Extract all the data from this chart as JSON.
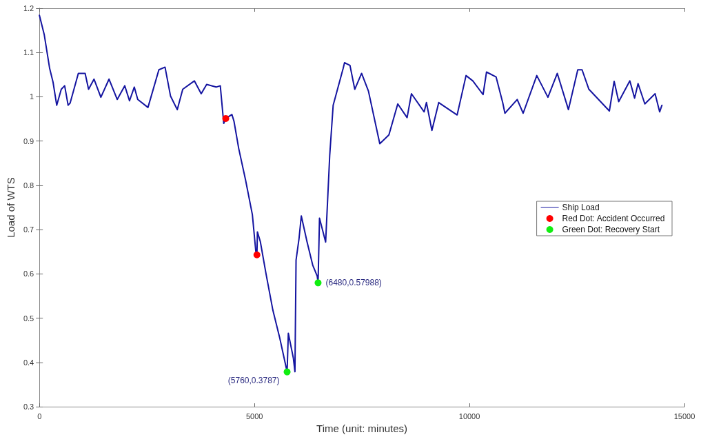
{
  "chart_data": {
    "type": "line",
    "xlabel": "Time (unit: minutes)",
    "ylabel": "Load of WTS",
    "xlim": [
      0,
      15000
    ],
    "xticks": [
      0,
      5000,
      10000,
      15000
    ],
    "ylim": [
      0.3,
      1.2
    ],
    "yticks": [
      0.3,
      0.4,
      0.5,
      0.6,
      0.7,
      0.8,
      0.9,
      1,
      1.1,
      1.2
    ],
    "grid": false,
    "legend": "right",
    "series": [
      {
        "name": "Ship Load",
        "marker": "none",
        "line_style": "solid",
        "color": "#1414a0",
        "x": [
          0,
          111,
          238,
          317,
          402,
          508,
          587,
          667,
          714,
          905,
          1063,
          1143,
          1270,
          1429,
          1619,
          1810,
          1984,
          2095,
          2206,
          2286,
          2524,
          2778,
          2921,
          3048,
          3206,
          3333,
          3603,
          3762,
          3889,
          4111,
          4206,
          4286,
          4333,
          4476,
          4524,
          4635,
          4794,
          4952,
          5032,
          5058,
          5069,
          5137,
          5270,
          5429,
          5587,
          5760,
          5788,
          5905,
          5942,
          5968,
          6037,
          6090,
          6222,
          6355,
          6460,
          6480,
          6513,
          6656,
          6751,
          6831,
          7063,
          7095,
          7222,
          7333,
          7492,
          7651,
          7915,
          8127,
          8333,
          8550,
          8651,
          8947,
          9000,
          9127,
          9286,
          9714,
          9921,
          10079,
          10317,
          10397,
          10619,
          10773,
          10825,
          11111,
          11249,
          11566,
          11825,
          12043,
          12302,
          12519,
          12619,
          12778,
          13254,
          13365,
          13471,
          13730,
          13841,
          13921,
          14079,
          14317,
          14423,
          14476
        ],
        "values": [
          1.184,
          1.141,
          1.064,
          1.033,
          0.981,
          1.017,
          1.025,
          0.981,
          0.986,
          1.053,
          1.053,
          1.017,
          1.04,
          0.999,
          1.04,
          0.994,
          1.025,
          0.991,
          1.022,
          0.994,
          0.976,
          1.061,
          1.067,
          1.002,
          0.971,
          1.017,
          1.036,
          1.007,
          1.028,
          1.022,
          1.025,
          0.94,
          0.951,
          0.96,
          0.945,
          0.883,
          0.812,
          0.734,
          0.651,
          0.643,
          0.695,
          0.673,
          0.6,
          0.518,
          0.456,
          0.3787,
          0.466,
          0.41,
          0.379,
          0.631,
          0.68,
          0.731,
          0.673,
          0.62,
          0.595,
          0.57988,
          0.726,
          0.672,
          0.868,
          0.981,
          1.064,
          1.077,
          1.071,
          1.017,
          1.053,
          1.013,
          0.894,
          0.914,
          0.984,
          0.953,
          1.007,
          0.966,
          0.987,
          0.924,
          0.987,
          0.959,
          1.048,
          1.036,
          1.005,
          1.056,
          1.045,
          0.987,
          0.963,
          0.994,
          0.963,
          1.048,
          0.999,
          1.053,
          0.971,
          1.061,
          1.061,
          1.017,
          0.968,
          1.035,
          0.989,
          1.036,
          0.997,
          1.03,
          0.984,
          1.007,
          0.966,
          0.981
        ]
      },
      {
        "name": "Red Dot: Accident Occurred",
        "type": "scatter",
        "marker": "circle",
        "color": "#ff0000",
        "x": [
          4333,
          5058
        ],
        "values": [
          0.951,
          0.643
        ]
      },
      {
        "name": "Green Dot: Recovery Start",
        "type": "scatter",
        "marker": "circle",
        "color": "#11ee11",
        "x": [
          5760,
          6480
        ],
        "values": [
          0.3787,
          0.57988
        ],
        "value_labels": [
          "(5760,0.3787)",
          "(6480,0.57988)"
        ]
      }
    ]
  }
}
